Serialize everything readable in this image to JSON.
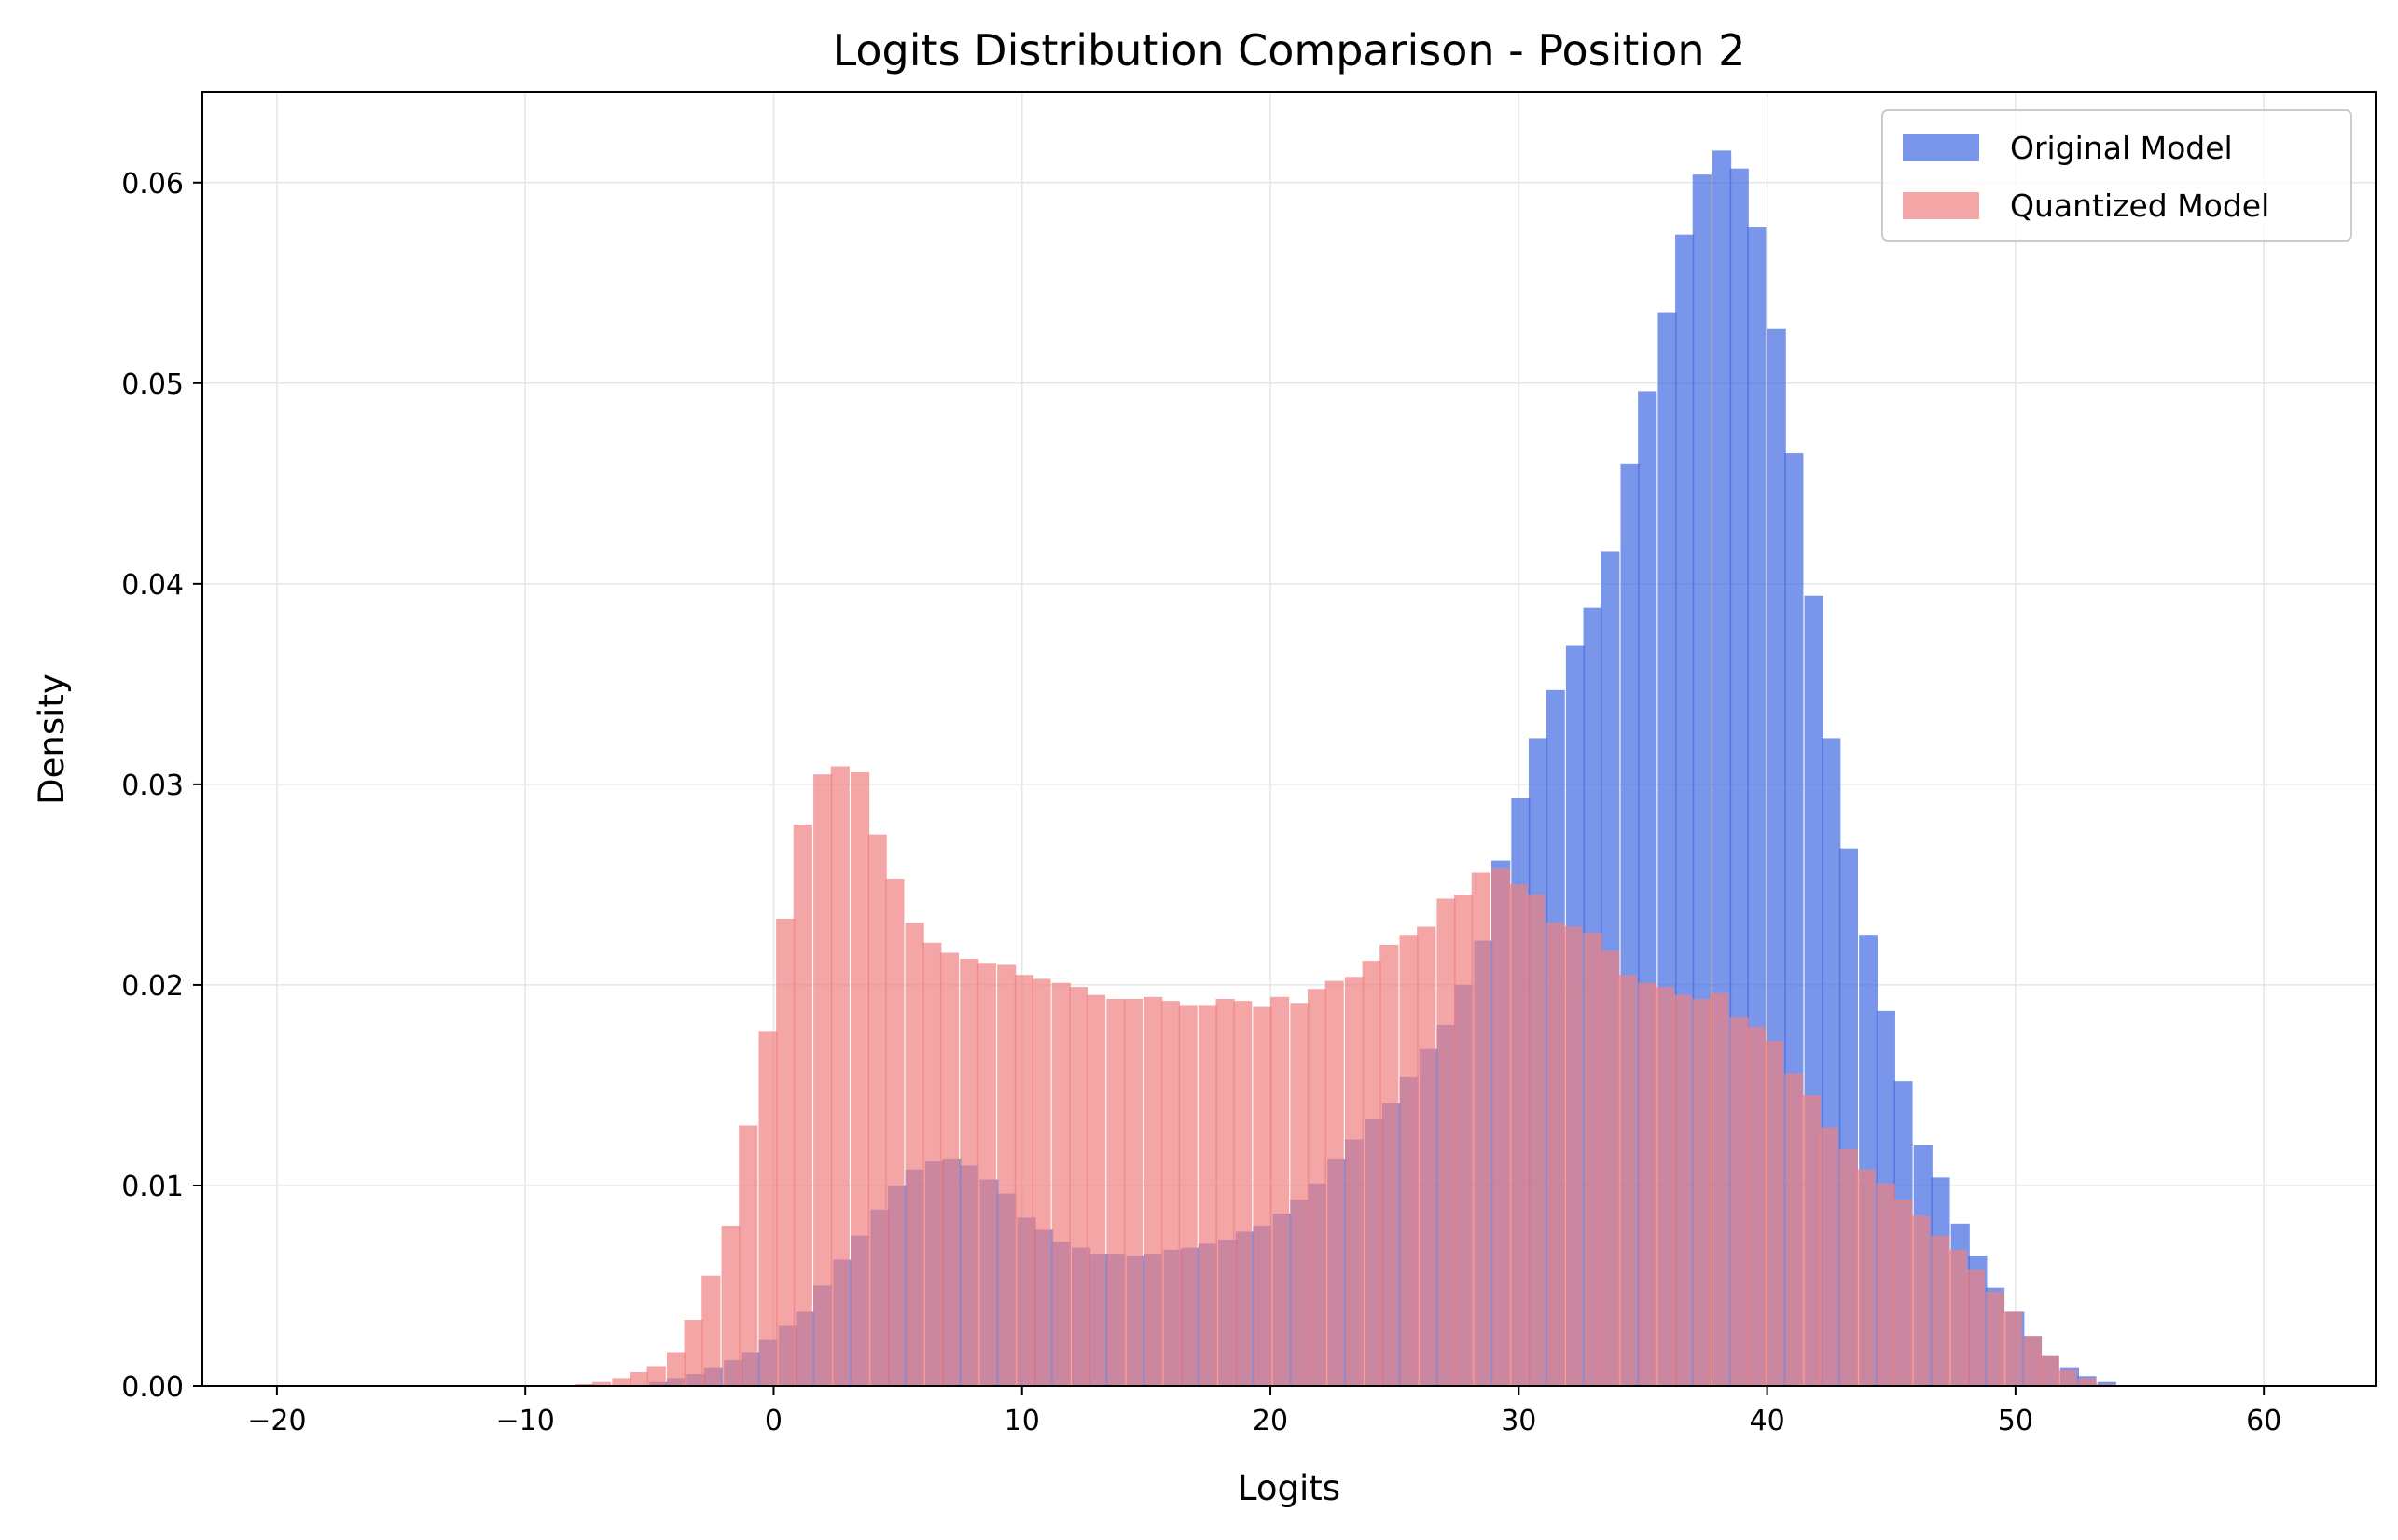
{
  "chart_data": {
    "type": "histogram",
    "title": "Logits Distribution Comparison - Position 2",
    "xlabel": "Logits",
    "ylabel": "Density",
    "xlim": [
      -23,
      64.5
    ],
    "ylim": [
      0,
      0.0645
    ],
    "xticks": [
      -20,
      -10,
      0,
      10,
      20,
      30,
      40,
      50,
      60
    ],
    "xtick_labels": [
      "−20",
      "−10",
      "0",
      "10",
      "20",
      "30",
      "40",
      "50",
      "60"
    ],
    "yticks": [
      0.0,
      0.01,
      0.02,
      0.03,
      0.04,
      0.05,
      0.06
    ],
    "ytick_labels": [
      "0.00",
      "0.01",
      "0.02",
      "0.03",
      "0.04",
      "0.05",
      "0.06"
    ],
    "grid": true,
    "legend_position": "top-right",
    "bin_width": 0.735,
    "series": [
      {
        "name": "Original Model",
        "color": "#4169e1",
        "opacity": 0.7,
        "bins": [
          [
            -5.0,
            0.0002
          ],
          [
            -4.3,
            0.0004
          ],
          [
            -3.5,
            0.0006
          ],
          [
            -2.8,
            0.0009
          ],
          [
            -2.0,
            0.0013
          ],
          [
            -1.3,
            0.0017
          ],
          [
            -0.6,
            0.0023
          ],
          [
            0.2,
            0.003
          ],
          [
            0.9,
            0.0037
          ],
          [
            1.6,
            0.005
          ],
          [
            2.4,
            0.0063
          ],
          [
            3.1,
            0.0075
          ],
          [
            3.9,
            0.0088
          ],
          [
            4.6,
            0.01
          ],
          [
            5.3,
            0.0108
          ],
          [
            6.1,
            0.0112
          ],
          [
            6.8,
            0.0113
          ],
          [
            7.5,
            0.011
          ],
          [
            8.3,
            0.0103
          ],
          [
            9.0,
            0.0096
          ],
          [
            9.8,
            0.0084
          ],
          [
            10.5,
            0.0078
          ],
          [
            11.2,
            0.0072
          ],
          [
            12.0,
            0.0069
          ],
          [
            12.7,
            0.0066
          ],
          [
            13.4,
            0.0066
          ],
          [
            14.2,
            0.0065
          ],
          [
            14.9,
            0.0066
          ],
          [
            15.7,
            0.0068
          ],
          [
            16.4,
            0.0069
          ],
          [
            17.1,
            0.0071
          ],
          [
            17.9,
            0.0073
          ],
          [
            18.6,
            0.0077
          ],
          [
            19.3,
            0.008
          ],
          [
            20.1,
            0.0086
          ],
          [
            20.8,
            0.0093
          ],
          [
            21.5,
            0.0101
          ],
          [
            22.3,
            0.0113
          ],
          [
            23.0,
            0.0123
          ],
          [
            23.8,
            0.0133
          ],
          [
            24.5,
            0.0141
          ],
          [
            25.2,
            0.0154
          ],
          [
            26.0,
            0.0168
          ],
          [
            26.7,
            0.018
          ],
          [
            27.4,
            0.02
          ],
          [
            28.2,
            0.0222
          ],
          [
            28.9,
            0.0262
          ],
          [
            29.7,
            0.0293
          ],
          [
            30.4,
            0.0323
          ],
          [
            31.1,
            0.0347
          ],
          [
            31.9,
            0.0369
          ],
          [
            32.6,
            0.0388
          ],
          [
            33.3,
            0.0416
          ],
          [
            34.1,
            0.046
          ],
          [
            34.8,
            0.0496
          ],
          [
            35.6,
            0.0535
          ],
          [
            36.3,
            0.0574
          ],
          [
            37.0,
            0.0604
          ],
          [
            37.8,
            0.0616
          ],
          [
            38.5,
            0.0607
          ],
          [
            39.2,
            0.0578
          ],
          [
            40.0,
            0.0527
          ],
          [
            40.7,
            0.0465
          ],
          [
            41.5,
            0.0394
          ],
          [
            42.2,
            0.0323
          ],
          [
            42.9,
            0.0268
          ],
          [
            43.7,
            0.0225
          ],
          [
            44.4,
            0.0187
          ],
          [
            45.1,
            0.0152
          ],
          [
            45.9,
            0.012
          ],
          [
            46.6,
            0.0104
          ],
          [
            47.4,
            0.0081
          ],
          [
            48.1,
            0.0065
          ],
          [
            48.8,
            0.0049
          ],
          [
            49.6,
            0.0037
          ],
          [
            50.3,
            0.0025
          ],
          [
            51.0,
            0.0015
          ],
          [
            51.8,
            0.0009
          ],
          [
            52.5,
            0.0005
          ],
          [
            53.3,
            0.0002
          ]
        ]
      },
      {
        "name": "Quantized Model",
        "color": "#f08080",
        "opacity": 0.7,
        "bins": [
          [
            -8.0,
            0.0001
          ],
          [
            -7.3,
            0.0002
          ],
          [
            -6.5,
            0.0004
          ],
          [
            -5.8,
            0.0007
          ],
          [
            -5.1,
            0.001
          ],
          [
            -4.3,
            0.0017
          ],
          [
            -3.6,
            0.0033
          ],
          [
            -2.9,
            0.0055
          ],
          [
            -2.1,
            0.008
          ],
          [
            -1.4,
            0.013
          ],
          [
            -0.6,
            0.0177
          ],
          [
            0.1,
            0.0233
          ],
          [
            0.8,
            0.028
          ],
          [
            1.6,
            0.0305
          ],
          [
            2.3,
            0.0309
          ],
          [
            3.1,
            0.0306
          ],
          [
            3.8,
            0.0275
          ],
          [
            4.5,
            0.0253
          ],
          [
            5.3,
            0.0231
          ],
          [
            6.0,
            0.0221
          ],
          [
            6.7,
            0.0216
          ],
          [
            7.5,
            0.0213
          ],
          [
            8.2,
            0.0211
          ],
          [
            9.0,
            0.021
          ],
          [
            9.7,
            0.0205
          ],
          [
            10.4,
            0.0203
          ],
          [
            11.2,
            0.0201
          ],
          [
            11.9,
            0.0199
          ],
          [
            12.6,
            0.0195
          ],
          [
            13.4,
            0.0193
          ],
          [
            14.1,
            0.0193
          ],
          [
            14.9,
            0.0194
          ],
          [
            15.6,
            0.0192
          ],
          [
            16.3,
            0.019
          ],
          [
            17.1,
            0.019
          ],
          [
            17.8,
            0.0193
          ],
          [
            18.5,
            0.0192
          ],
          [
            19.3,
            0.0189
          ],
          [
            20.0,
            0.0194
          ],
          [
            20.8,
            0.0191
          ],
          [
            21.5,
            0.0198
          ],
          [
            22.2,
            0.0202
          ],
          [
            23.0,
            0.0204
          ],
          [
            23.7,
            0.0212
          ],
          [
            24.4,
            0.022
          ],
          [
            25.2,
            0.0225
          ],
          [
            25.9,
            0.0229
          ],
          [
            26.7,
            0.0243
          ],
          [
            27.4,
            0.0245
          ],
          [
            28.1,
            0.0256
          ],
          [
            28.9,
            0.0258
          ],
          [
            29.6,
            0.025
          ],
          [
            30.3,
            0.0245
          ],
          [
            31.1,
            0.0231
          ],
          [
            31.8,
            0.0229
          ],
          [
            32.6,
            0.0226
          ],
          [
            33.3,
            0.0217
          ],
          [
            34.0,
            0.0205
          ],
          [
            34.8,
            0.0201
          ],
          [
            35.5,
            0.0199
          ],
          [
            36.2,
            0.0195
          ],
          [
            37.0,
            0.0193
          ],
          [
            37.7,
            0.0196
          ],
          [
            38.5,
            0.0184
          ],
          [
            39.2,
            0.0179
          ],
          [
            39.9,
            0.0172
          ],
          [
            40.7,
            0.0156
          ],
          [
            41.4,
            0.0145
          ],
          [
            42.1,
            0.0129
          ],
          [
            42.9,
            0.0118
          ],
          [
            43.6,
            0.0108
          ],
          [
            44.4,
            0.0101
          ],
          [
            45.1,
            0.0093
          ],
          [
            45.8,
            0.0085
          ],
          [
            46.6,
            0.0075
          ],
          [
            47.3,
            0.0068
          ],
          [
            48.0,
            0.0058
          ],
          [
            48.8,
            0.0047
          ],
          [
            49.5,
            0.0037
          ],
          [
            50.3,
            0.0025
          ],
          [
            51.0,
            0.0015
          ],
          [
            51.7,
            0.0008
          ],
          [
            52.5,
            0.0004
          ],
          [
            53.2,
            0.0001
          ]
        ]
      }
    ]
  }
}
